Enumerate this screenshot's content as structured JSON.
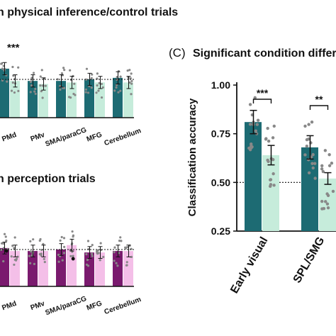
{
  "colors": {
    "teal": "#1d6b73",
    "teal_light": "#c6ecdb",
    "purple": "#7a1a6e",
    "pink": "#f4bfe8",
    "dot": "#888888",
    "text": "#111111"
  },
  "panel_a": {
    "title": "n physical inference/control trials",
    "significance": [
      "***"
    ]
  },
  "panel_b": {
    "title": "n perception trials",
    "significance": [
      "•",
      "•"
    ]
  },
  "panel_c": {
    "label": "(C)",
    "title": "Significant condition differe",
    "significance": [
      "***",
      "**"
    ]
  },
  "chart_data": [
    {
      "type": "bar",
      "categories": [
        "PMd",
        "PMv",
        "SMA/paraCG",
        "MFG",
        "Cerebellum"
      ],
      "series": [
        {
          "values": [
            0.82,
            0.74,
            0.74,
            0.75,
            0.76
          ]
        },
        {
          "values": [
            0.74,
            0.72,
            0.73,
            0.73,
            0.73
          ]
        }
      ],
      "reference_line": 0.75,
      "ylim": [
        0.5,
        1.0
      ],
      "xlabel": "",
      "ylabel": ""
    },
    {
      "type": "bar",
      "categories": [
        "PMd",
        "PMv",
        "SMA/paraCG",
        "MFG",
        "Cerebellum"
      ],
      "series": [
        {
          "values": [
            0.76,
            0.74,
            0.75,
            0.73,
            0.74
          ]
        },
        {
          "values": [
            0.74,
            0.74,
            0.78,
            0.73,
            0.74
          ]
        }
      ],
      "reference_line": 0.75,
      "ylim": [
        0.5,
        1.0
      ],
      "xlabel": "",
      "ylabel": ""
    },
    {
      "type": "bar",
      "categories": [
        "Early visual",
        "SPL/SMG"
      ],
      "series": [
        {
          "values": [
            0.81,
            0.68
          ]
        },
        {
          "values": [
            0.64,
            0.52
          ]
        }
      ],
      "errors": [
        [
          0.06,
          0.06
        ],
        [
          0.05,
          0.03
        ]
      ],
      "reference_line": 0.5,
      "ylim": [
        0.25,
        1.0
      ],
      "yticks": [
        "0.25",
        "0.50",
        "0.75",
        "1.00"
      ],
      "ylabel": "Classification accuracy",
      "xlabel": ""
    }
  ]
}
